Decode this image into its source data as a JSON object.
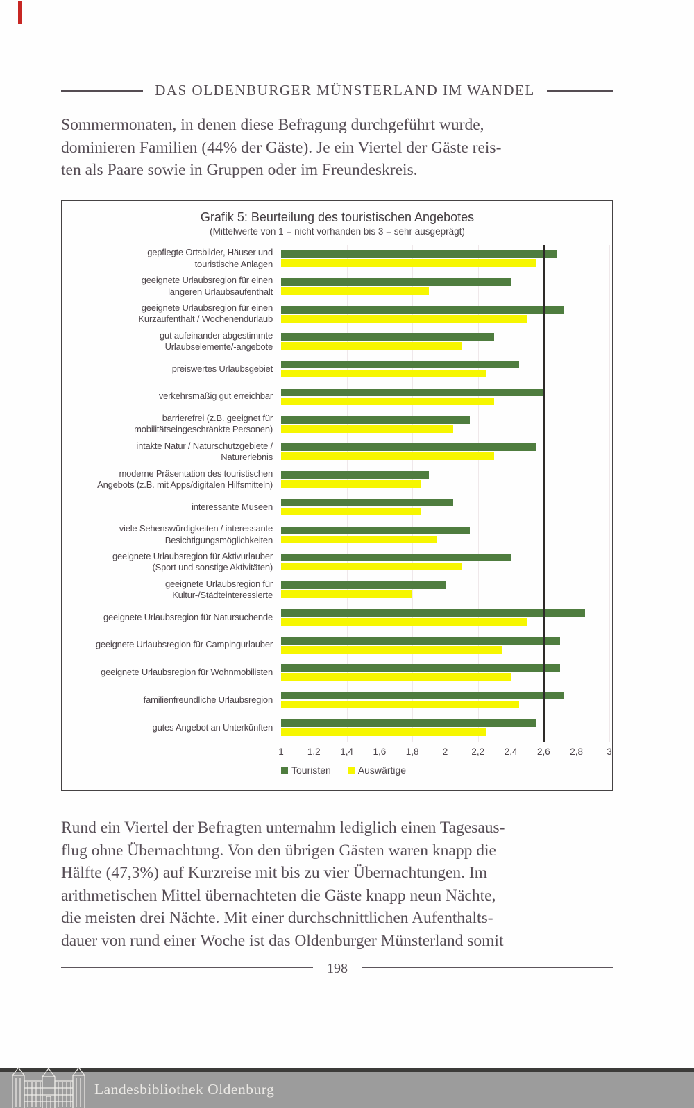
{
  "page": {
    "header": "DAS OLDENBURGER MÜNSTERLAND IM WANDEL",
    "para1_lines": [
      "Sommermonaten, in denen diese Befragung durchgeführt wurde,",
      "dominieren Familien (44% der Gäste). Je ein Viertel der Gäste reis-",
      "ten als Paare sowie in Gruppen oder im Freundeskreis."
    ],
    "para2_lines": [
      "Rund ein Viertel der Befragten unternahm lediglich einen Tagesaus-",
      "flug ohne Übernachtung. Von den übrigen Gästen waren knapp die",
      "Hälfte (47,3%) auf Kurzreise mit bis zu vier Übernachtungen. Im",
      "arithmetischen Mittel übernachteten die Gäste knapp neun Nächte,",
      "die meisten drei Nächte. Mit einer durchschnittlichen Aufenthalts-",
      "dauer von rund einer Woche ist das Oldenburger Münsterland somit"
    ],
    "page_number": "198",
    "footer": "Landesbibliothek Oldenburg",
    "footer_icon": "library-building-icon"
  },
  "chart_data": {
    "type": "bar",
    "orientation": "horizontal",
    "title": "Grafik 5: Beurteilung des touristischen Angebotes",
    "subtitle": "(Mittelwerte von 1 = nicht vorhanden bis 3 = sehr ausgeprägt)",
    "xlim": [
      1,
      3
    ],
    "xticks": [
      "1",
      "1,2",
      "1,4",
      "1,6",
      "1,8",
      "2",
      "2,2",
      "2,4",
      "2,6",
      "2,8",
      "3"
    ],
    "reference_line_x": 2.6,
    "grid": "faint-vertical-gridlines",
    "legend_position": "bottom-left",
    "categories": [
      [
        "gepflegte Ortsbilder, Häuser und",
        "touristische Anlagen"
      ],
      [
        "geeignete Urlaubsregion für einen",
        "längeren Urlaubsaufenthalt"
      ],
      [
        "geeignete Urlaubsregion für einen",
        "Kurzaufenthalt / Wochenendurlaub"
      ],
      [
        "gut aufeinander abgestimmte",
        "Urlaubselemente/-angebote"
      ],
      [
        "preiswertes Urlaubsgebiet"
      ],
      [
        "verkehrsmäßig gut erreichbar"
      ],
      [
        "barrierefrei (z.B. geeignet für",
        "mobilitätseingeschränkte Personen)"
      ],
      [
        "intakte Natur / Naturschutzgebiete /",
        "Naturerlebnis"
      ],
      [
        "moderne Präsentation des touristischen",
        "Angebots (z.B. mit Apps/digitalen Hilfsmitteln)"
      ],
      [
        "interessante Museen"
      ],
      [
        "viele Sehenswürdigkeiten / interessante",
        "Besichtigungsmöglichkeiten"
      ],
      [
        "geeignete Urlaubsregion für Aktivurlauber",
        "(Sport und sonstige Aktivitäten)"
      ],
      [
        "geeignete Urlaubsregion für",
        "Kultur-/Städteinteressierte"
      ],
      [
        "geeignete Urlaubsregion für Natursuchende"
      ],
      [
        "geeignete Urlaubsregion für Campingurlauber"
      ],
      [
        "geeignete Urlaubsregion für Wohnmobilisten"
      ],
      [
        "familienfreundliche Urlaubsregion"
      ],
      [
        "gutes Angebot an Unterkünften"
      ]
    ],
    "series": [
      {
        "name": "Touristen",
        "color": "#4f7d3f",
        "values": [
          2.68,
          2.4,
          2.72,
          2.3,
          2.45,
          2.6,
          2.15,
          2.55,
          1.9,
          2.05,
          2.15,
          2.4,
          2.0,
          2.85,
          2.7,
          2.7,
          2.72,
          2.55
        ]
      },
      {
        "name": "Auswärtige",
        "color": "#f6f600",
        "values": [
          2.55,
          1.9,
          2.5,
          2.1,
          2.25,
          2.3,
          2.05,
          2.3,
          1.85,
          1.85,
          1.95,
          2.1,
          1.8,
          2.5,
          2.35,
          2.4,
          2.45,
          2.25
        ]
      }
    ]
  },
  "colors": {
    "touristen_green": "#4f7d3f",
    "auswaertige_yellow": "#f6f600",
    "reference_line": "#2d2a28",
    "chart_border": "#454243",
    "footer_bar": "#9c9c9c",
    "red_mark": "#c72723"
  }
}
